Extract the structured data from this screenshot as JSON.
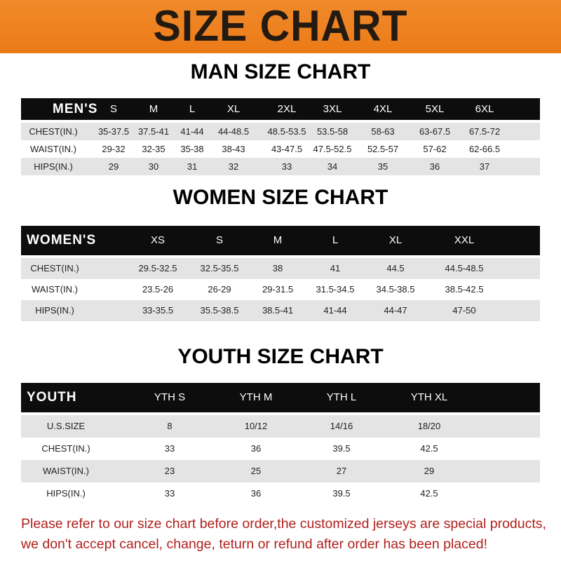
{
  "banner_title": "SIZE CHART",
  "men": {
    "title": "MAN SIZE CHART",
    "header": [
      "MEN'S",
      "S",
      "M",
      "L",
      "XL",
      "2XL",
      "3XL",
      "4XL",
      "5XL",
      "6XL"
    ],
    "rows": [
      [
        "CHEST(IN.)",
        "35-37.5",
        "37.5-41",
        "41-44",
        "44-48.5",
        "48.5-53.5",
        "53.5-58",
        "58-63",
        "63-67.5",
        "67.5-72"
      ],
      [
        "WAIST(IN.)",
        "29-32",
        "32-35",
        "35-38",
        "38-43",
        "43-47.5",
        "47.5-52.5",
        "52.5-57",
        "57-62",
        "62-66.5"
      ],
      [
        "HIPS(IN.)",
        "29",
        "30",
        "31",
        "32",
        "33",
        "34",
        "35",
        "36",
        "37"
      ]
    ]
  },
  "women": {
    "title": "WOMEN SIZE CHART",
    "header": [
      "WOMEN'S",
      "XS",
      "S",
      "M",
      "L",
      "XL",
      "XXL"
    ],
    "rows": [
      [
        "CHEST(IN.)",
        "29.5-32.5",
        "32.5-35.5",
        "38",
        "41",
        "44.5",
        "44.5-48.5"
      ],
      [
        "WAIST(IN.)",
        "23.5-26",
        "26-29",
        "29-31.5",
        "31.5-34.5",
        "34.5-38.5",
        "38.5-42.5"
      ],
      [
        "HIPS(IN.)",
        "33-35.5",
        "35.5-38.5",
        "38.5-41",
        "41-44",
        "44-47",
        "47-50"
      ]
    ]
  },
  "youth": {
    "title": "YOUTH SIZE CHART",
    "header": [
      "YOUTH",
      "YTH S",
      "YTH M",
      "YTH L",
      "YTH XL"
    ],
    "rows": [
      [
        "U.S.SIZE",
        "8",
        "10/12",
        "14/16",
        "18/20"
      ],
      [
        "CHEST(IN.)",
        "33",
        "36",
        "39.5",
        "42.5"
      ],
      [
        "WAIST(IN.)",
        "23",
        "25",
        "27",
        "29"
      ],
      [
        "HIPS(IN.)",
        "33",
        "36",
        "39.5",
        "42.5"
      ]
    ]
  },
  "note": [
    "Please refer to our size chart before order,the customized jerseys are special products,",
    "we don't accept cancel, change, teturn or refund after order has been placed!"
  ],
  "colors": {
    "banner": "#ec7a18",
    "header_row": "#0d0d0d",
    "stripe": "#e4e4e4",
    "note": "#b0201c"
  }
}
